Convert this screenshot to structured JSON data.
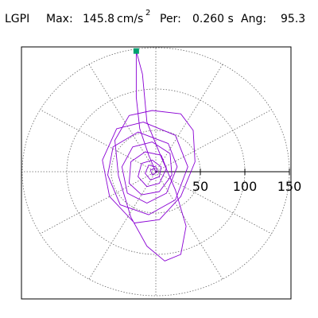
{
  "header": {
    "station": "LGPI",
    "max_label": "Max:",
    "max_value": "145.8",
    "max_unit": "cm/s",
    "max_unit_exp": "2",
    "period_label": "Per:",
    "period_value": "0.260 s",
    "angle_label": "Ang:",
    "angle_value": "95.3"
  },
  "chart_data": {
    "type": "polar-particle-motion",
    "radial_range": [
      0,
      150
    ],
    "radial_ticks": [
      50,
      100,
      150
    ],
    "radial_tick_labels": [
      "50",
      "100",
      "150"
    ],
    "ring_values": [
      50,
      100,
      150
    ],
    "spoke_angles_deg": [
      0,
      30,
      60,
      90,
      120,
      150,
      180,
      210,
      240,
      270,
      300,
      330
    ],
    "grid": "dotted",
    "trace_color": "#8a00d4",
    "peak_marker": {
      "x": -22,
      "y": 146,
      "color": "#00a070"
    },
    "trace_points": [
      [
        0,
        0
      ],
      [
        -8,
        20
      ],
      [
        -18,
        52
      ],
      [
        -22,
        90
      ],
      [
        -22,
        128
      ],
      [
        -22,
        146
      ],
      [
        -15,
        118
      ],
      [
        -10,
        60
      ],
      [
        6,
        18
      ],
      [
        22,
        -22
      ],
      [
        34,
        -66
      ],
      [
        28,
        -100
      ],
      [
        10,
        -108
      ],
      [
        -10,
        -90
      ],
      [
        -28,
        -55
      ],
      [
        -42,
        -5
      ],
      [
        -46,
        38
      ],
      [
        -30,
        68
      ],
      [
        -4,
        74
      ],
      [
        28,
        70
      ],
      [
        42,
        50
      ],
      [
        44,
        12
      ],
      [
        28,
        -30
      ],
      [
        4,
        -58
      ],
      [
        -24,
        -62
      ],
      [
        -52,
        -30
      ],
      [
        -60,
        14
      ],
      [
        -44,
        52
      ],
      [
        -14,
        60
      ],
      [
        22,
        44
      ],
      [
        36,
        6
      ],
      [
        22,
        -34
      ],
      [
        -8,
        -52
      ],
      [
        -40,
        -40
      ],
      [
        -54,
        -4
      ],
      [
        -48,
        30
      ],
      [
        -20,
        48
      ],
      [
        14,
        34
      ],
      [
        24,
        6
      ],
      [
        12,
        -26
      ],
      [
        -10,
        -38
      ],
      [
        -32,
        -26
      ],
      [
        -38,
        6
      ],
      [
        -26,
        30
      ],
      [
        -4,
        36
      ],
      [
        16,
        22
      ],
      [
        18,
        -4
      ],
      [
        4,
        -24
      ],
      [
        -16,
        -28
      ],
      [
        -30,
        -14
      ],
      [
        -28,
        12
      ],
      [
        -12,
        24
      ],
      [
        6,
        20
      ],
      [
        12,
        4
      ],
      [
        4,
        -14
      ],
      [
        -10,
        -18
      ],
      [
        -20,
        -6
      ],
      [
        -16,
        10
      ],
      [
        -4,
        14
      ],
      [
        6,
        6
      ],
      [
        4,
        -6
      ],
      [
        -6,
        -10
      ],
      [
        -12,
        -2
      ],
      [
        -8,
        8
      ],
      [
        0,
        6
      ],
      [
        2,
        0
      ],
      [
        -4,
        -4
      ],
      [
        -6,
        2
      ],
      [
        -2,
        4
      ],
      [
        0,
        0
      ]
    ]
  }
}
